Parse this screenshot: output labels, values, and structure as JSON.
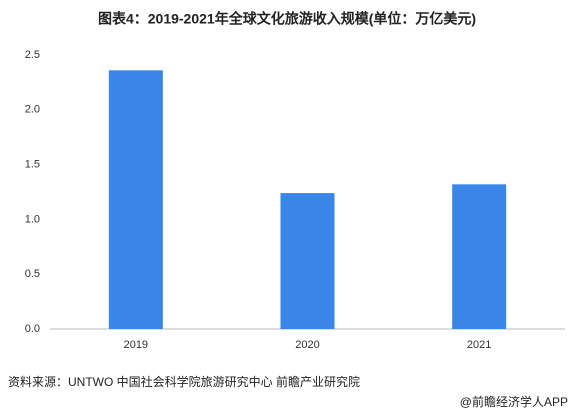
{
  "chart_data": {
    "type": "bar",
    "title": "图表4：2019-2021年全球文化旅游收入规模(单位：万亿美元)",
    "categories": [
      "2019",
      "2020",
      "2021"
    ],
    "values": [
      2.36,
      1.24,
      1.32
    ],
    "color": "#3a86e8",
    "ylim": [
      0,
      2.5
    ],
    "yticks": [
      {
        "value": 0,
        "label": "0.0"
      },
      0.5,
      {
        "value": 1,
        "label": "1.0"
      },
      1.5,
      {
        "value": 2,
        "label": "2.0"
      },
      2.5
    ],
    "grid": false,
    "source": "资料来源：UNTWO 中国社会科学院旅游研究中心 前瞻产业研究院",
    "credit": "@前瞻经济学人APP"
  }
}
